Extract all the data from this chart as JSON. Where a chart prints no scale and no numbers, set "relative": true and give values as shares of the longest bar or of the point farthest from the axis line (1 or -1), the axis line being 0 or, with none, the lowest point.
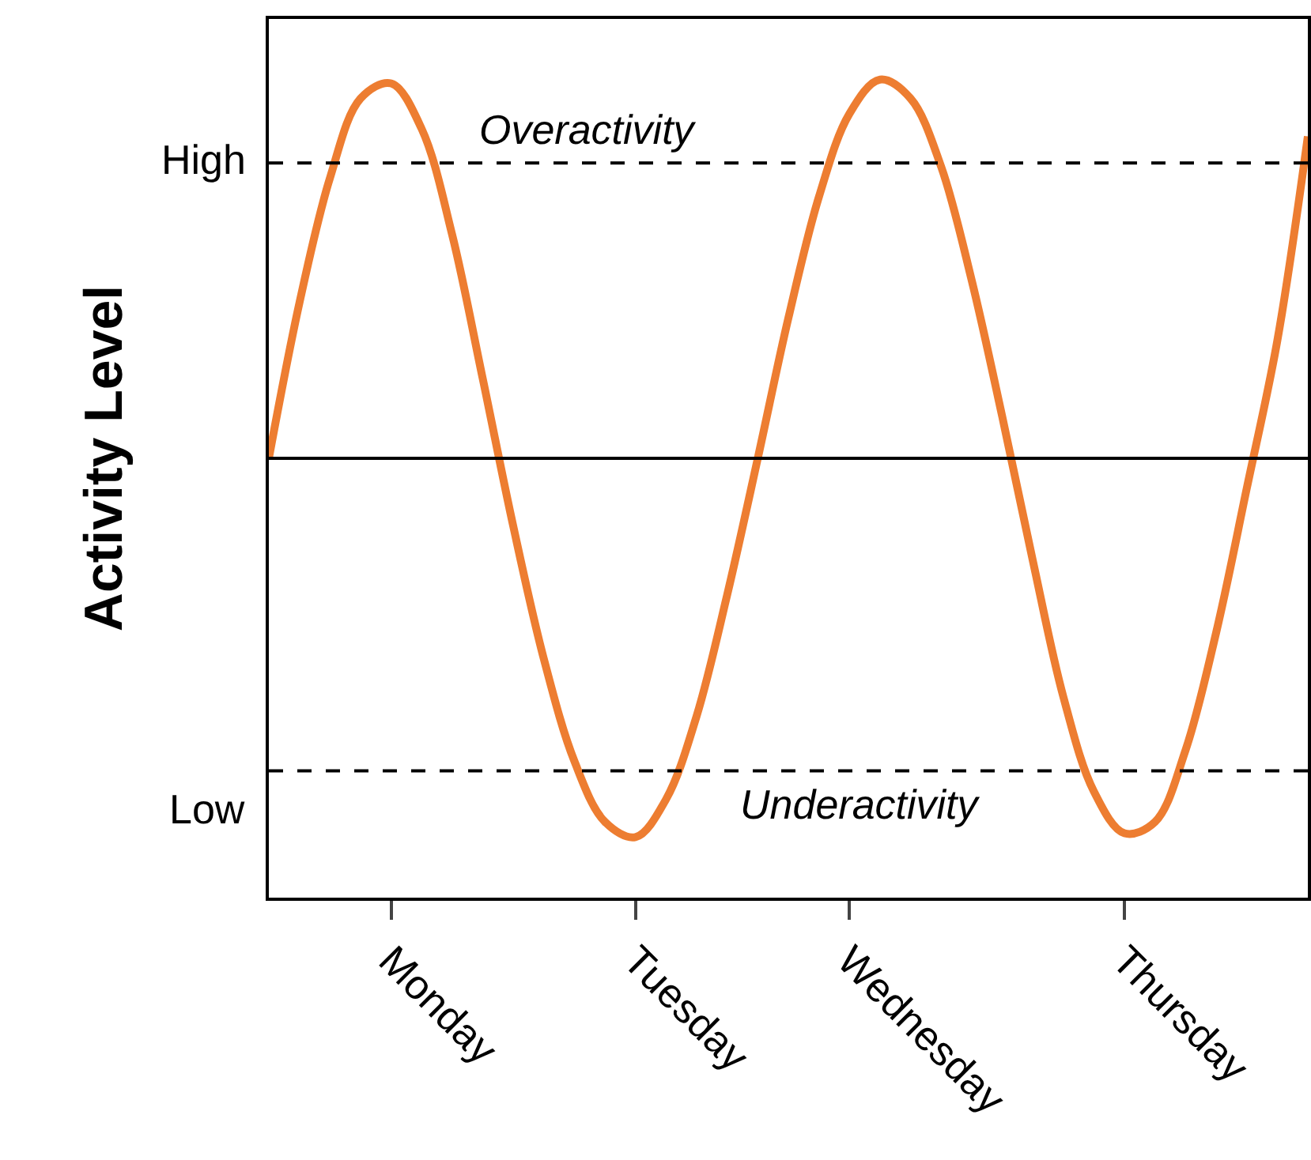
{
  "chart_data": {
    "type": "line",
    "ylabel": "Activity Level",
    "relative": true,
    "categories": [
      null,
      null,
      null,
      null,
      "Monday",
      null,
      null,
      null,
      null,
      null,
      null,
      null,
      "Tuesday",
      null,
      null,
      null,
      null,
      null,
      null,
      "Wednesday",
      null,
      null,
      null,
      null,
      null,
      null,
      null,
      null,
      "Thursday",
      null,
      null,
      null,
      null,
      null,
      null
    ],
    "series": [
      {
        "color": "#ed7d31",
        "values": [
          0,
          0.41,
          0.74,
          0.95,
          0.99,
          0.87,
          0.59,
          0.21,
          -0.18,
          -0.53,
          -0.8,
          -0.96,
          -1.0,
          -0.9,
          -0.68,
          -0.36,
          0,
          0.37,
          0.69,
          0.91,
          1.0,
          0.95,
          0.77,
          0.47,
          0.11,
          -0.27,
          -0.63,
          -0.88,
          -0.99,
          -0.96,
          -0.77,
          -0.46,
          -0.08,
          0.31,
          0.85
        ]
      }
    ],
    "ref_lines": [
      {
        "axis": "y",
        "value": 0,
        "label": null,
        "color": "#000000",
        "line_style": "solid"
      },
      {
        "axis": "y",
        "value": 0.78,
        "label": "Overactivity",
        "color": "#000000",
        "line_style": "dashed"
      },
      {
        "axis": "y",
        "value": -0.825,
        "label": "Underactivity",
        "color": "#000000",
        "line_style": "dashed"
      }
    ],
    "annotations": [
      "High",
      "Low"
    ],
    "marker": "none",
    "line_style": "solid"
  }
}
